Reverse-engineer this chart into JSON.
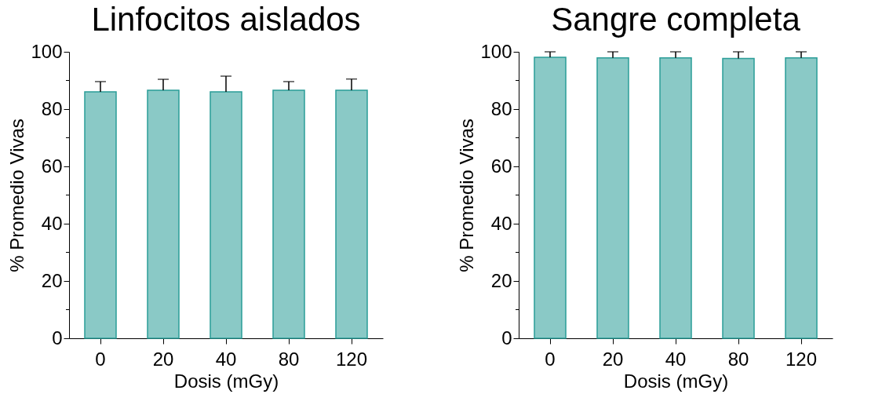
{
  "chart_data": [
    {
      "type": "bar",
      "title": "Linfocitos aislados",
      "xlabel": "Dosis (mGy)",
      "ylabel": "% Promedio Vivas",
      "categories": [
        "0",
        "20",
        "40",
        "80",
        "120"
      ],
      "values": [
        86.0,
        86.6,
        86.0,
        86.6,
        86.6
      ],
      "errors": [
        3.6,
        3.8,
        5.5,
        3.0,
        3.9
      ],
      "color": "#2a9d98",
      "ylim": [
        0,
        100
      ],
      "yticks": [
        0,
        {
          "value": 10,
          "label": null
        },
        20,
        {
          "value": 30,
          "label": null
        },
        40,
        {
          "value": 50,
          "label": null
        },
        60,
        {
          "value": 70,
          "label": null
        },
        80,
        {
          "value": 90,
          "label": null
        },
        100
      ],
      "grid": false,
      "legend": false
    },
    {
      "type": "bar",
      "title": "Sangre completa",
      "xlabel": "Dosis (mGy)",
      "ylabel": "% Promedio Vivas",
      "categories": [
        "0",
        "20",
        "40",
        "80",
        "120"
      ],
      "values": [
        98.1,
        97.9,
        97.9,
        97.7,
        97.9
      ],
      "errors": [
        1.9,
        2.1,
        2.1,
        2.3,
        2.1
      ],
      "color": "#2a9d98",
      "ylim": [
        0,
        100
      ],
      "yticks": [
        0,
        {
          "value": 10,
          "label": null
        },
        20,
        {
          "value": 30,
          "label": null
        },
        40,
        {
          "value": 50,
          "label": null
        },
        60,
        {
          "value": 70,
          "label": null
        },
        80,
        {
          "value": 90,
          "label": null
        },
        100
      ],
      "grid": false,
      "legend": false
    }
  ]
}
